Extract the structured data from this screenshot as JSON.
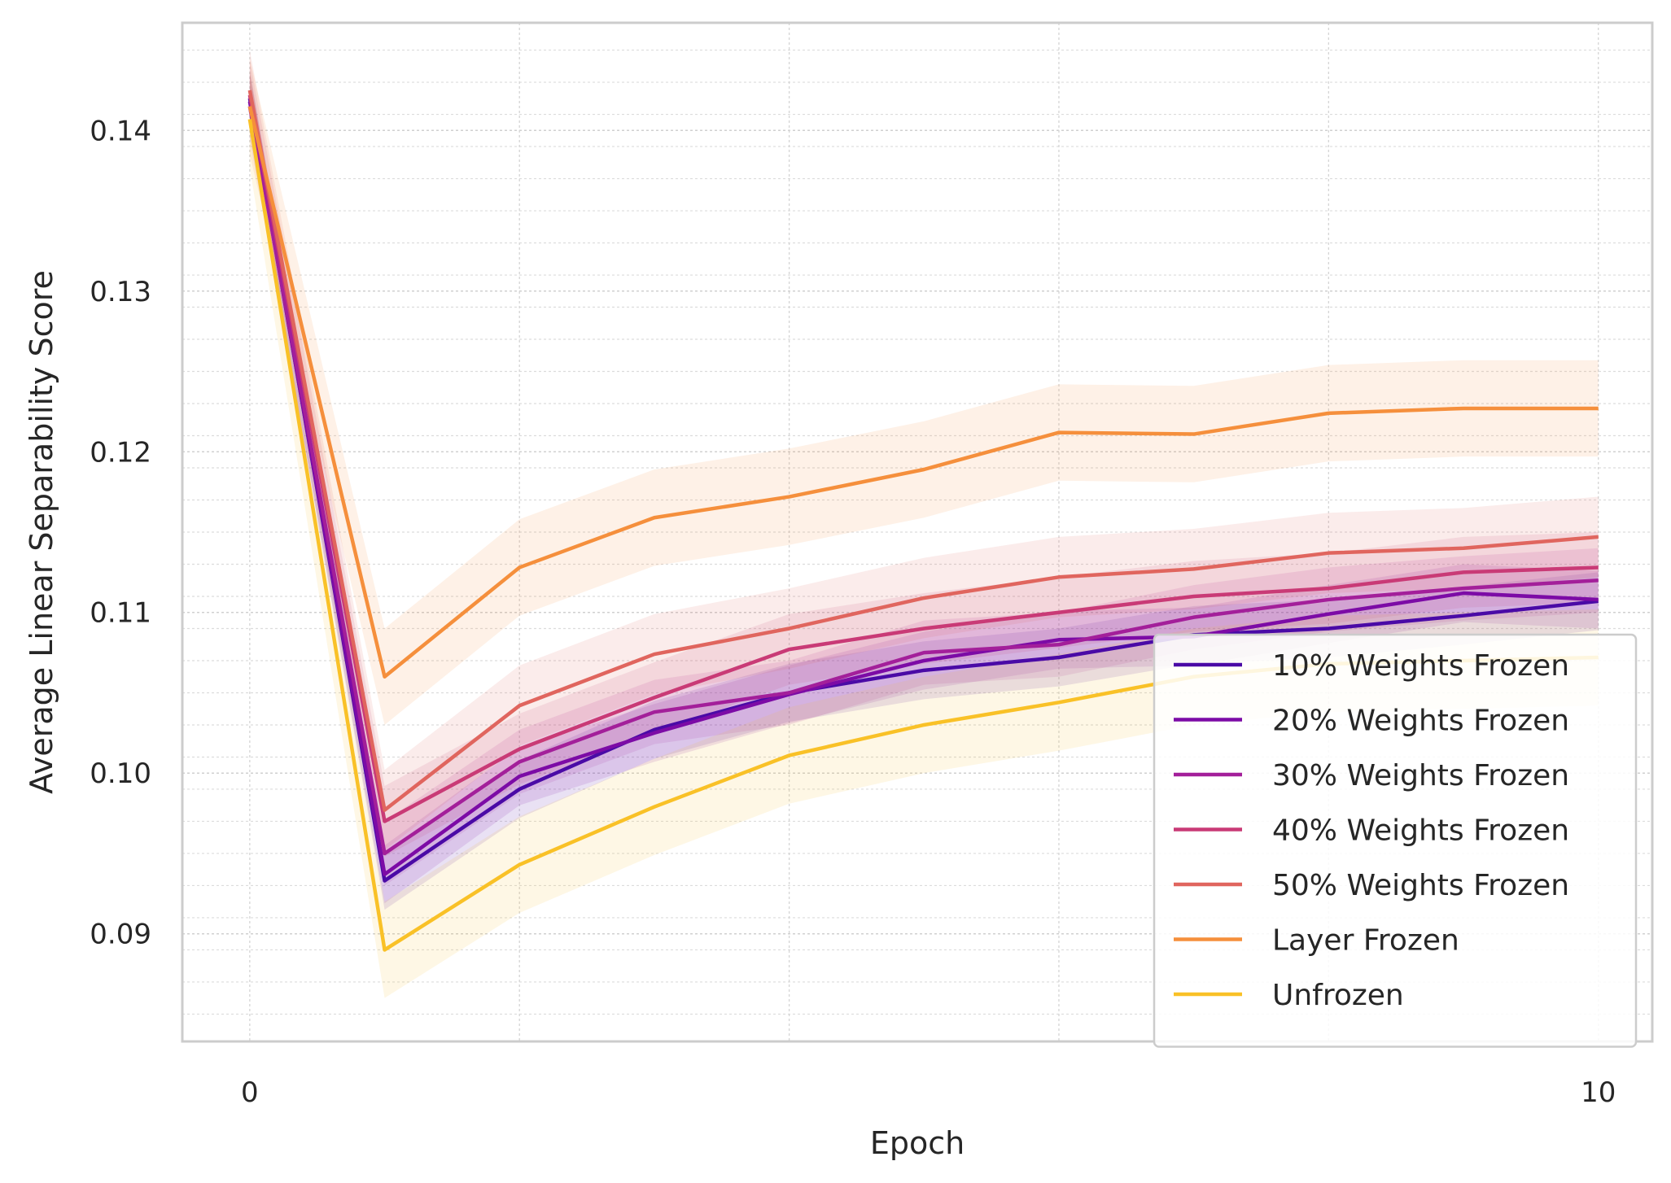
{
  "chart_data": {
    "type": "line",
    "xlabel": "Epoch",
    "ylabel": "Average Linear Separability Score",
    "xlim": [
      -0.5,
      10.4
    ],
    "ylim": [
      0.0833,
      0.1467
    ],
    "xticks": [
      0,
      10
    ],
    "xtick_labels": [
      "0",
      "10"
    ],
    "yticks": [
      0.09,
      0.1,
      0.11,
      0.12,
      0.13,
      0.14
    ],
    "ytick_labels": [
      "0.09",
      "0.10",
      "0.11",
      "0.12",
      "0.13",
      "0.14"
    ],
    "grid": true,
    "legend_position": "lower-right",
    "x": [
      0,
      1,
      2,
      3,
      4,
      5,
      6,
      7,
      8,
      9,
      10
    ],
    "series": [
      {
        "name": "10% Weights Frozen",
        "color": "#4a0aa6",
        "values": [
          0.142,
          0.0933,
          0.099,
          0.1027,
          0.105,
          0.1064,
          0.1072,
          0.1086,
          0.109,
          0.1098,
          0.1107
        ],
        "band": 0.0018
      },
      {
        "name": "20% Weights Frozen",
        "color": "#7c0ba6",
        "values": [
          0.1418,
          0.0937,
          0.0998,
          0.1025,
          0.1049,
          0.107,
          0.1083,
          0.1085,
          0.1099,
          0.1112,
          0.1108
        ],
        "band": 0.0018
      },
      {
        "name": "30% Weights Frozen",
        "color": "#a31f9a",
        "values": [
          0.1415,
          0.095,
          0.1007,
          0.1038,
          0.105,
          0.1075,
          0.108,
          0.1097,
          0.1108,
          0.1115,
          0.112
        ],
        "band": 0.002
      },
      {
        "name": "40% Weights Frozen",
        "color": "#c93a76",
        "values": [
          0.1422,
          0.097,
          0.1015,
          0.1047,
          0.1077,
          0.109,
          0.11,
          0.111,
          0.1115,
          0.1125,
          0.1128
        ],
        "band": 0.0022
      },
      {
        "name": "50% Weights Frozen",
        "color": "#e0655e",
        "values": [
          0.1425,
          0.0977,
          0.1042,
          0.1074,
          0.109,
          0.1109,
          0.1122,
          0.1127,
          0.1137,
          0.114,
          0.1147
        ],
        "band": 0.0025
      },
      {
        "name": "Layer Frozen",
        "color": "#f58f3c",
        "values": [
          0.1415,
          0.106,
          0.1128,
          0.1159,
          0.1172,
          0.1189,
          0.1212,
          0.1211,
          0.1224,
          0.1227,
          0.1227
        ],
        "band": 0.003
      },
      {
        "name": "Unfrozen",
        "color": "#f9c127",
        "values": [
          0.1407,
          0.089,
          0.0943,
          0.0979,
          0.1011,
          0.103,
          0.1044,
          0.106,
          0.1068,
          0.107,
          0.1072
        ],
        "band": 0.003
      }
    ]
  }
}
